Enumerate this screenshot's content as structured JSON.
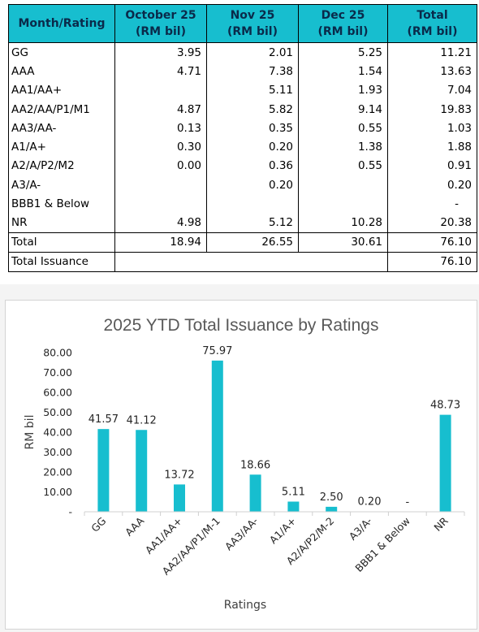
{
  "table": {
    "headers": [
      {
        "l1": "Month/Rating",
        "l2": ""
      },
      {
        "l1": "October 25",
        "l2": "(RM bil)"
      },
      {
        "l1": "Nov 25",
        "l2": "(RM bil)"
      },
      {
        "l1": "Dec 25",
        "l2": "(RM bil)"
      },
      {
        "l1": "Total",
        "l2": "(RM bil)"
      }
    ],
    "rows": [
      [
        "GG",
        "3.95",
        "2.01",
        "5.25",
        "11.21"
      ],
      [
        "AAA",
        "4.71",
        "7.38",
        "1.54",
        "13.63"
      ],
      [
        "AA1/AA+",
        "",
        "5.11",
        "1.93",
        "7.04"
      ],
      [
        "AA2/AA/P1/M1",
        "4.87",
        "5.82",
        "9.14",
        "19.83"
      ],
      [
        "AA3/AA-",
        "0.13",
        "0.35",
        "0.55",
        "1.03"
      ],
      [
        "A1/A+",
        "0.30",
        "0.20",
        "1.38",
        "1.88"
      ],
      [
        "A2/A/P2/M2",
        "0.00",
        "0.36",
        "0.55",
        "0.91"
      ],
      [
        "A3/A-",
        "",
        "0.20",
        "",
        "0.20"
      ],
      [
        "BBB1 & Below",
        "",
        "",
        "",
        "-"
      ],
      [
        "NR",
        "4.98",
        "5.12",
        "10.28",
        "20.38"
      ]
    ],
    "total_row": [
      "Total",
      "18.94",
      "26.55",
      "30.61",
      "76.10"
    ],
    "issuance_row": {
      "label": "Total Issuance",
      "value": "76.10"
    }
  },
  "chart_data": {
    "type": "bar",
    "title": "2025 YTD Total Issuance by Ratings",
    "xlabel": "Ratings",
    "ylabel": "RM bil",
    "categories": [
      "GG",
      "AAA",
      "AA1/AA+",
      "AA2/AA/P1/M-1",
      "AA3/AA-",
      "A1/A+",
      "A2/A/P2/M-2",
      "A3/A-",
      "BBB1 & Below",
      "NR"
    ],
    "values": [
      41.57,
      41.12,
      13.72,
      75.97,
      18.66,
      5.11,
      2.5,
      0.2,
      0,
      48.73
    ],
    "data_labels": [
      "41.57",
      "41.12",
      "13.72",
      "75.97",
      "18.66",
      "5.11",
      "2.50",
      "0.20",
      "-",
      "48.73"
    ],
    "ylim": [
      0,
      80
    ],
    "yticks": [
      0,
      10,
      20,
      30,
      40,
      50,
      60,
      70,
      80
    ],
    "ytick_labels": [
      "-",
      "10.00",
      "20.00",
      "30.00",
      "40.00",
      "50.00",
      "60.00",
      "70.00",
      "80.00"
    ],
    "grid": false,
    "bar_color": "#17becf"
  }
}
